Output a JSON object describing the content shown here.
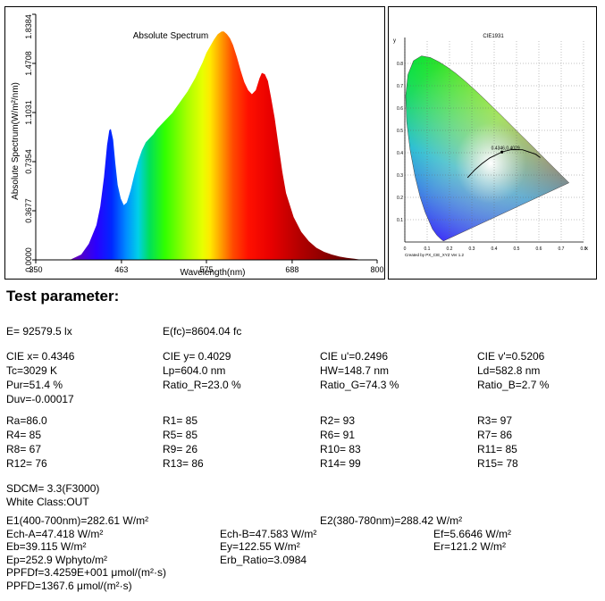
{
  "chart_data": [
    {
      "type": "area",
      "title": "Absolute Spectrum",
      "xlabel": "Wavelength(nm)",
      "ylabel": "Absolute Spectrum(W/m²/nm)",
      "xlim": [
        350,
        800
      ],
      "ylim": [
        0,
        1.8384
      ],
      "xticks": [
        "350",
        "463",
        "575",
        "688",
        "800"
      ],
      "yticks": [
        "0.0000",
        "0.3677",
        "0.7354",
        "1.1031",
        "1.4708",
        "1.8384"
      ],
      "x": [
        395,
        410,
        420,
        430,
        435,
        440,
        444,
        447,
        449,
        452,
        455,
        458,
        462,
        466,
        470,
        475,
        480,
        485,
        490,
        495,
        500,
        505,
        510,
        520,
        530,
        540,
        550,
        560,
        570,
        575,
        580,
        585,
        590,
        595,
        598,
        602,
        606,
        610,
        615,
        620,
        625,
        630,
        635,
        640,
        645,
        648,
        652,
        656,
        660,
        665,
        670,
        675,
        680,
        690,
        700,
        710,
        720,
        730,
        740,
        750,
        760,
        770,
        780
      ],
      "values": [
        0.0,
        0.04,
        0.12,
        0.26,
        0.4,
        0.62,
        0.86,
        0.97,
        0.98,
        0.9,
        0.72,
        0.56,
        0.46,
        0.41,
        0.43,
        0.52,
        0.64,
        0.74,
        0.82,
        0.88,
        0.91,
        0.94,
        0.98,
        1.04,
        1.1,
        1.18,
        1.26,
        1.36,
        1.48,
        1.55,
        1.6,
        1.65,
        1.69,
        1.71,
        1.71,
        1.69,
        1.66,
        1.61,
        1.52,
        1.42,
        1.33,
        1.27,
        1.24,
        1.27,
        1.36,
        1.4,
        1.39,
        1.34,
        1.22,
        1.06,
        0.86,
        0.66,
        0.5,
        0.32,
        0.21,
        0.14,
        0.09,
        0.06,
        0.04,
        0.025,
        0.015,
        0.008,
        0.0
      ],
      "grid": false
    },
    {
      "type": "scatter",
      "title": "CIE1931",
      "xlabel": "x",
      "ylabel": "y",
      "xlim": [
        0,
        0.8
      ],
      "ylim": [
        0,
        0.9
      ],
      "xticks": [
        "0",
        "0.1",
        "0.2",
        "0.3",
        "0.4",
        "0.5",
        "0.6",
        "0.7",
        "0.8"
      ],
      "yticks": [
        "0.1",
        "0.2",
        "0.3",
        "0.4",
        "0.5",
        "0.6",
        "0.7",
        "0.8"
      ],
      "point_label": "0.4346,0.4029",
      "x": [
        0.4346
      ],
      "y": [
        0.4029
      ],
      "footer": "Created by PX_CIE_XYZ Ver 1.2",
      "grid": true
    }
  ],
  "report": {
    "heading": "Test parameter:",
    "e": "E=  92579.5 lx",
    "efc": "E(fc)=8604.04 fc",
    "cie_x": "CIE x= 0.4346",
    "cie_y": "CIE y= 0.4029",
    "cie_u": "CIE u'=0.2496",
    "cie_v": "CIE v'=0.5206",
    "tc": "Tc=3029 K",
    "lp": "Lp=604.0 nm",
    "hw": "HW=148.7 nm",
    "ld": "Ld=582.8 nm",
    "pur": "Pur=51.4 %",
    "ratio_r": "Ratio_R=23.0 %",
    "ratio_g": "Ratio_G=74.3 %",
    "ratio_b": "Ratio_B=2.7 %",
    "duv": "Duv=-0.00017",
    "ra": "Ra=86.0",
    "r1": "R1= 85",
    "r2": "R2= 93",
    "r3": "R3= 97",
    "r4": "R4= 85",
    "r5": "R5= 85",
    "r6": "R6= 91",
    "r7": "R7= 86",
    "r8": "R8= 67",
    "r9": "R9= 26",
    "r10": "R10= 83",
    "r11": "R11= 85",
    "r12": "R12= 76",
    "r13": "R13= 86",
    "r14": "R14= 99",
    "r15": "R15= 78",
    "sdcm": "SDCM= 3.3(F3000)",
    "white_class": "White Class:OUT",
    "e1": "E1(400-700nm)=282.61 W/m²",
    "e2": "E2(380-780nm)=288.42 W/m²",
    "ech_a": "Ech-A=47.418 W/m²",
    "ech_b": "Ech-B=47.583 W/m²",
    "ef": "Ef=5.6646 W/m²",
    "eb": "Eb=39.115 W/m²",
    "ey": "Ey=122.55 W/m²",
    "er": "Er=121.2 W/m²",
    "ep": "Ep=252.9 Wphyto/m²",
    "erb": "Erb_Ratio=3.0984",
    "ppfdf": "PPFDf=3.4259E+001 μmol/(m²·s)",
    "ppfd": "PPFD=1367.6 μmol/(m²·s)"
  }
}
